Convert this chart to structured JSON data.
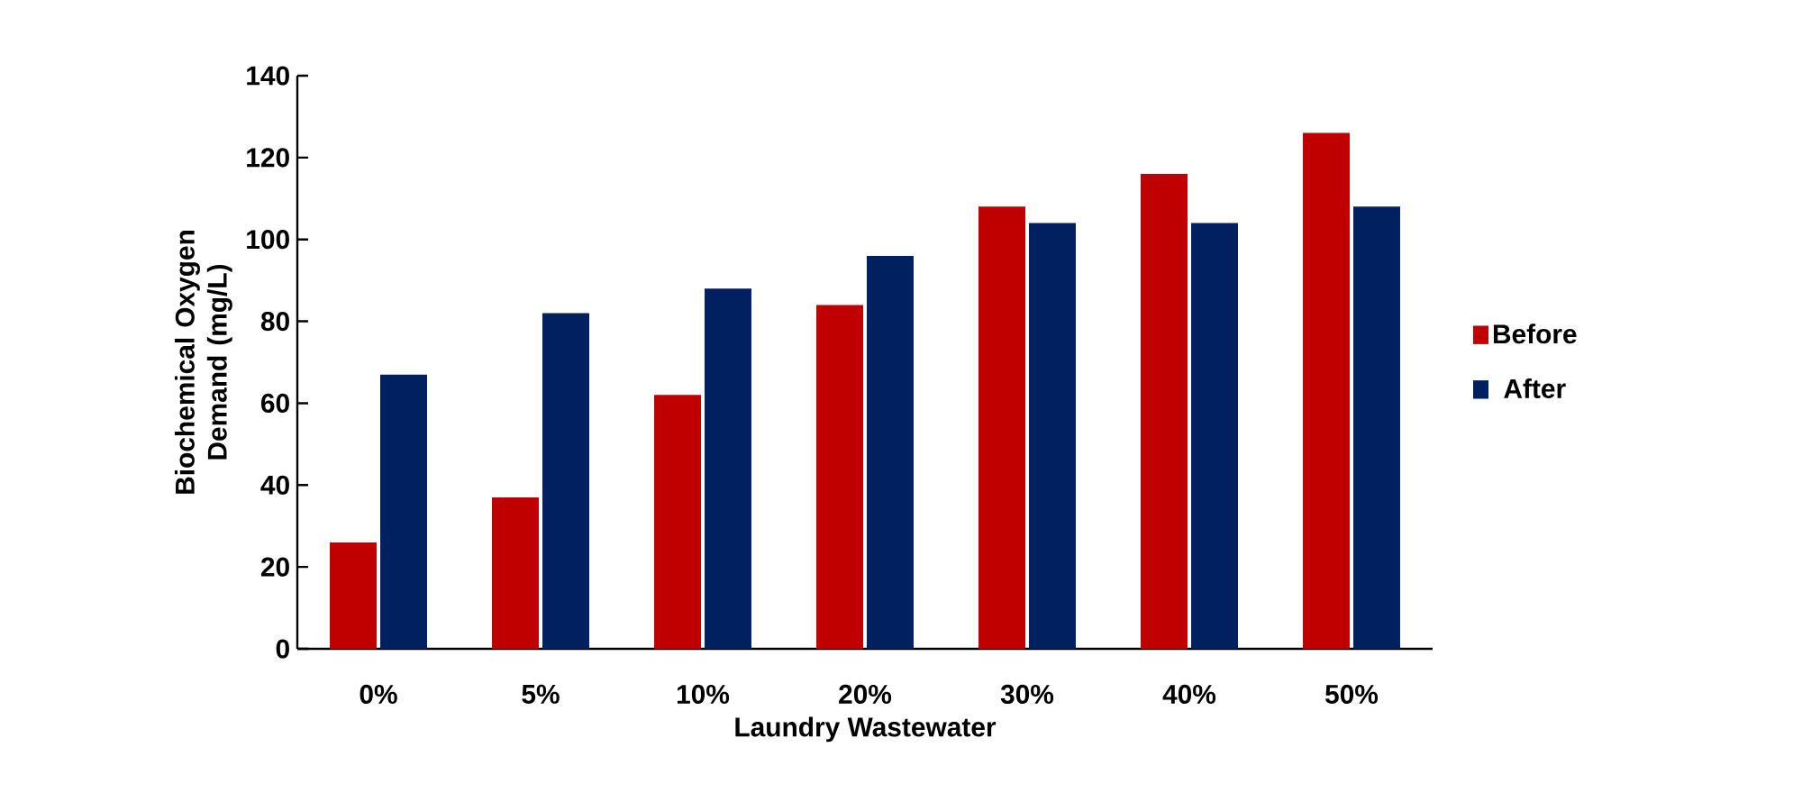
{
  "chart_data": {
    "type": "bar",
    "xlabel": "Laundry Wastewater",
    "ylabel": "Biochemical Oxygen Demand (mg/L)",
    "categories": [
      "0%",
      "5%",
      "10%",
      "20%",
      "30%",
      "40%",
      "50%"
    ],
    "series": [
      {
        "name": "Before",
        "color": "#c00000",
        "values": [
          26,
          37,
          62,
          84,
          108,
          116,
          126
        ]
      },
      {
        "name": "After",
        "color": "#002060",
        "values": [
          67,
          82,
          88,
          96,
          104,
          104,
          108
        ]
      }
    ],
    "ylim": [
      0,
      140
    ],
    "yticks": [
      0,
      20,
      40,
      60,
      80,
      100,
      120,
      140
    ],
    "legend": "right",
    "grid": false
  }
}
